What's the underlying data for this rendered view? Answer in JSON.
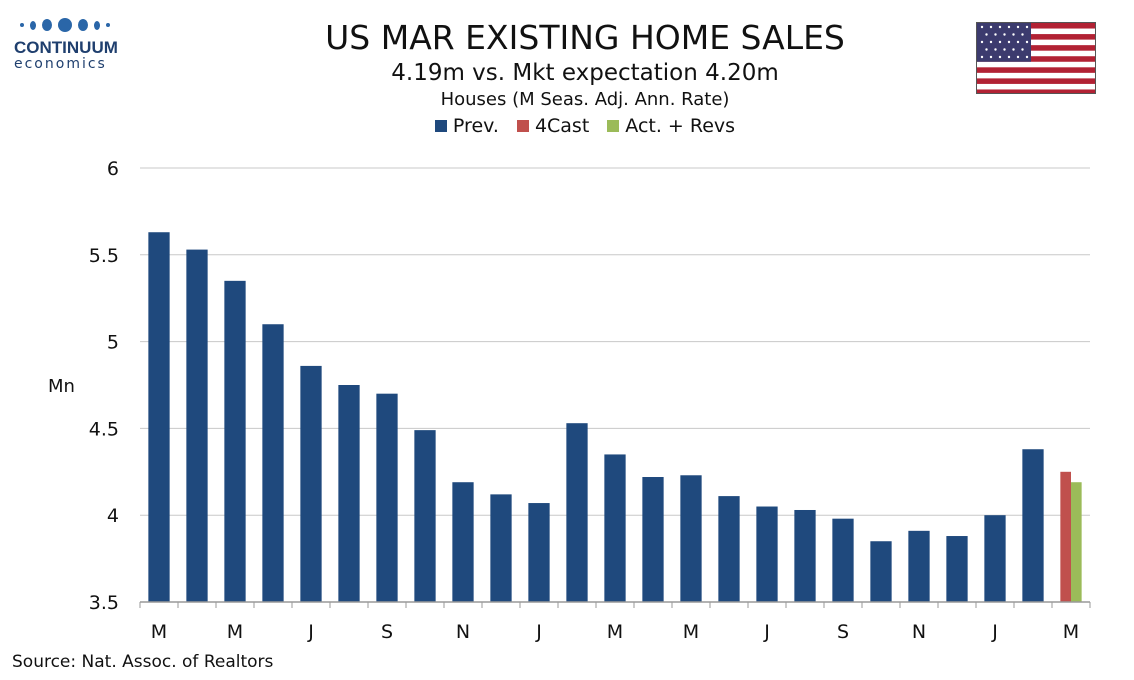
{
  "logo": {
    "word": "CONTINUUM",
    "sub": "economics",
    "color": "#1f3f6e"
  },
  "header": {
    "title": "US MAR EXISTING HOME SALES",
    "subtitle": "4.19m vs. Mkt expectation 4.20m",
    "subtitle2": "Houses (M Seas. Adj. Ann. Rate)"
  },
  "flag_icon": "us-flag-icon",
  "legend": [
    {
      "label": "Prev.",
      "color": "#1f497d"
    },
    {
      "label": "4Cast",
      "color": "#c0504d"
    },
    {
      "label": "Act. + Revs",
      "color": "#9bbb59"
    }
  ],
  "chart_data": {
    "type": "bar",
    "ylabel": "Mn",
    "ylim": [
      3.5,
      6
    ],
    "yticks": [
      "6",
      "5.5",
      "5",
      "4.5",
      "4",
      "3.5"
    ],
    "ytick_values": [
      6,
      5.5,
      5,
      4.5,
      4,
      3.5
    ],
    "grid": true,
    "legend_position": "top",
    "x_tick_labels": [
      "M",
      "M",
      "J",
      "S",
      "N",
      "J",
      "M",
      "M",
      "J",
      "S",
      "N",
      "J",
      "M"
    ],
    "series": [
      {
        "name": "Prev.",
        "color": "#1f497d",
        "values": [
          5.63,
          5.53,
          5.35,
          5.1,
          4.86,
          4.75,
          4.7,
          4.49,
          4.19,
          4.12,
          4.07,
          4.53,
          4.35,
          4.22,
          4.23,
          4.11,
          4.05,
          4.03,
          3.98,
          3.85,
          3.91,
          3.88,
          4.0,
          4.38
        ]
      },
      {
        "name": "4Cast",
        "color": "#c0504d",
        "values": [
          4.25
        ]
      },
      {
        "name": "Act. + Revs",
        "color": "#9bbb59",
        "values": [
          4.19
        ]
      }
    ]
  },
  "footer": {
    "source": "Source: Nat. Assoc. of Realtors"
  }
}
